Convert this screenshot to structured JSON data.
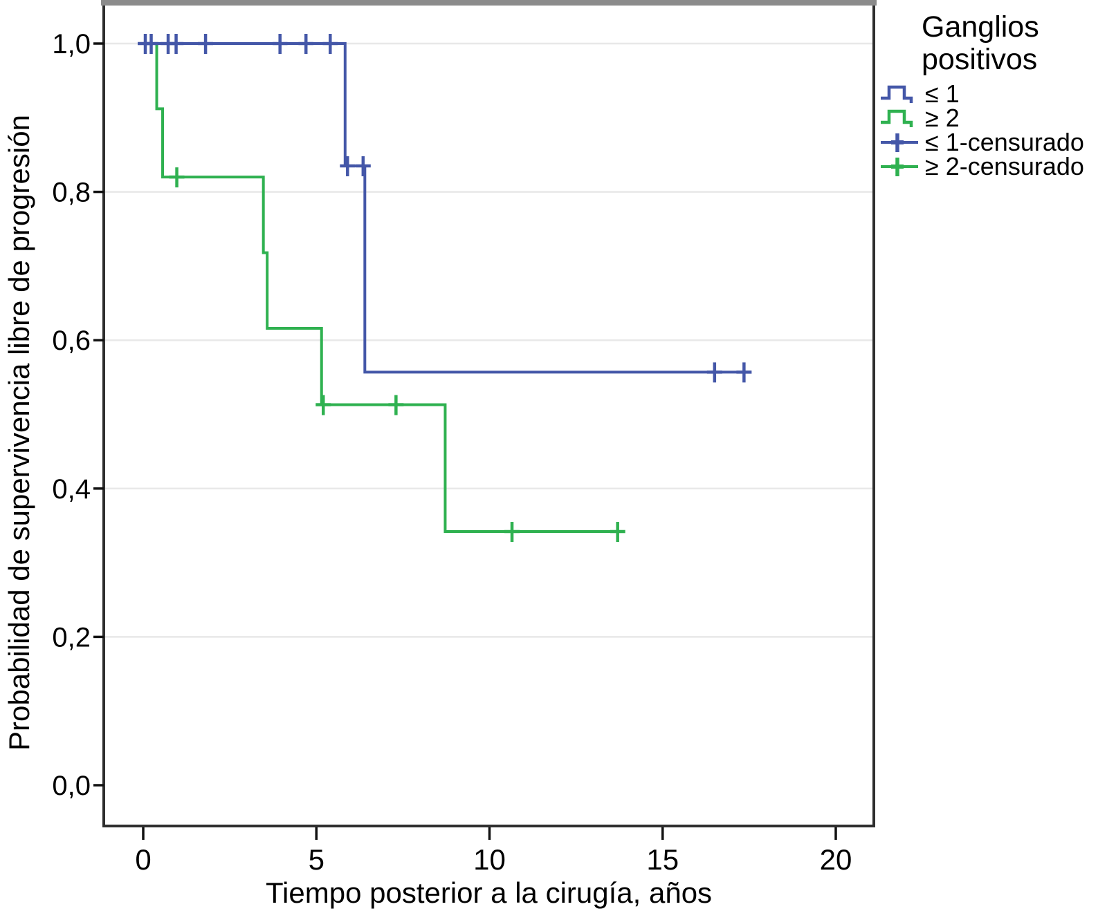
{
  "chart_data": {
    "type": "line",
    "variant": "kaplan_meier_step",
    "title": "",
    "xlabel": "Tiempo posterior a la cirugía, años",
    "ylabel": "Probabilidad de supervivencia libre de progresión",
    "xlim": [
      0,
      20
    ],
    "ylim": [
      0.0,
      1.0
    ],
    "xticks": {
      "values": [
        0,
        5,
        10,
        15,
        20
      ],
      "labels": [
        "0",
        "5",
        "10",
        "15",
        "20"
      ]
    },
    "yticks": {
      "values": [
        1.0,
        0.8,
        0.6,
        0.4,
        0.2,
        0.0
      ],
      "labels": [
        "1,0",
        "0,8",
        "0,6",
        "0,4",
        "0,2",
        "0,0"
      ]
    },
    "grid": {
      "horizontal": true,
      "color": "#e8e8e8"
    },
    "frame": {
      "edge_color": "#2e2e2e",
      "top_edge_color": "#8b8b8b"
    },
    "legend": {
      "position": "top-right",
      "title_lines": [
        "Ganglios",
        "positivos"
      ],
      "items": [
        {
          "label": "≤ 1",
          "symbol": "step",
          "color": "#4457a8"
        },
        {
          "label": "≥ 2",
          "symbol": "step",
          "color": "#2fb150"
        },
        {
          "label": "≤ 1-censurado",
          "symbol": "plus",
          "color": "#4457a8"
        },
        {
          "label": "≥ 2-censurado",
          "symbol": "plus",
          "color": "#2fb150"
        }
      ]
    },
    "series": [
      {
        "name": "≤ 1",
        "color": "#4457a8",
        "draw_style": "steps-post",
        "points": [
          [
            0,
            1.0
          ],
          [
            5.83,
            1.0
          ],
          [
            5.83,
            0.835
          ],
          [
            6.4,
            0.835
          ],
          [
            6.4,
            0.557
          ],
          [
            17.55,
            0.557
          ]
        ],
        "censored": [
          [
            0.06,
            1.0
          ],
          [
            0.23,
            1.0
          ],
          [
            0.72,
            1.0
          ],
          [
            0.95,
            1.0
          ],
          [
            1.8,
            1.0
          ],
          [
            3.95,
            1.0
          ],
          [
            4.7,
            1.0
          ],
          [
            5.4,
            1.0
          ],
          [
            5.9,
            0.835
          ],
          [
            6.35,
            0.835
          ],
          [
            16.5,
            0.557
          ],
          [
            17.35,
            0.557
          ]
        ]
      },
      {
        "name": "≥ 2",
        "color": "#2fb150",
        "draw_style": "steps-post",
        "points": [
          [
            0,
            1.0
          ],
          [
            0.39,
            1.0
          ],
          [
            0.39,
            0.912
          ],
          [
            0.56,
            0.912
          ],
          [
            0.56,
            0.82
          ],
          [
            3.47,
            0.82
          ],
          [
            3.47,
            0.718
          ],
          [
            3.58,
            0.718
          ],
          [
            3.58,
            0.616
          ],
          [
            5.15,
            0.616
          ],
          [
            5.15,
            0.513
          ],
          [
            8.72,
            0.513
          ],
          [
            8.72,
            0.342
          ],
          [
            13.85,
            0.342
          ]
        ],
        "censored": [
          [
            0.97,
            0.82
          ],
          [
            5.2,
            0.513
          ],
          [
            7.3,
            0.513
          ],
          [
            10.65,
            0.342
          ],
          [
            13.7,
            0.342
          ]
        ]
      }
    ]
  }
}
